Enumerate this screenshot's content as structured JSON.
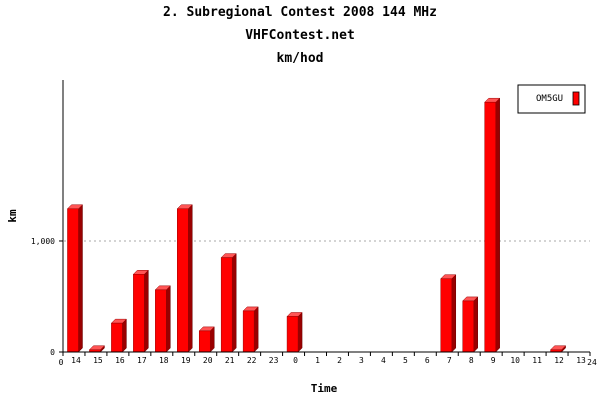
{
  "chart_data": {
    "type": "bar",
    "title": "2. Subregional Contest 2008 144 MHz",
    "subtitle": "VHFContest.net",
    "subtitle2": "km/hod",
    "xlabel": "Time",
    "ylabel": "km",
    "y_tick_labels": [
      "0",
      "1,000"
    ],
    "y_tick_values": [
      0,
      1000
    ],
    "ylim": [
      0,
      2450
    ],
    "x_range_labels": [
      "0",
      "24"
    ],
    "grid": "horizontal-dotted",
    "legend": "top-right",
    "categories": [
      "14",
      "15",
      "16",
      "17",
      "18",
      "19",
      "20",
      "21",
      "22",
      "23",
      "0",
      "1",
      "2",
      "3",
      "4",
      "5",
      "6",
      "7",
      "8",
      "9",
      "10",
      "11",
      "12",
      "13"
    ],
    "series": [
      {
        "name": "OM5GU",
        "color": "#ff0000",
        "values": [
          1290,
          20,
          260,
          700,
          560,
          1290,
          190,
          850,
          370,
          0,
          320,
          0,
          0,
          0,
          0,
          0,
          0,
          660,
          460,
          2250,
          0,
          0,
          20,
          0
        ]
      }
    ]
  }
}
